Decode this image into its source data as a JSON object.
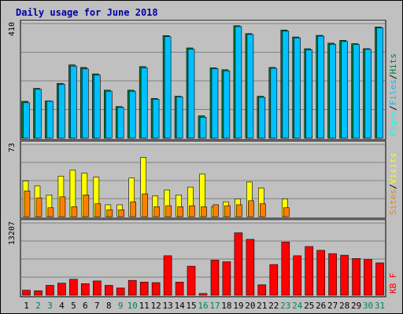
{
  "chart_data": {
    "type": "bar",
    "title": "Daily usage for June 2018",
    "categories": [
      "1",
      "2",
      "3",
      "4",
      "5",
      "6",
      "7",
      "8",
      "9",
      "10",
      "11",
      "12",
      "13",
      "14",
      "15",
      "16",
      "17",
      "18",
      "19",
      "20",
      "21",
      "22",
      "23",
      "24",
      "25",
      "26",
      "27",
      "28",
      "29",
      "30",
      "31"
    ],
    "weekend_days": [
      "2",
      "3",
      "9",
      "10",
      "16",
      "17",
      "23",
      "24",
      "30",
      "31"
    ],
    "panels": [
      {
        "id": "hits",
        "ymax": 410,
        "ymax_label": "410",
        "ylabel": [
          "Pages",
          "Files",
          "Hits"
        ],
        "series": [
          {
            "name": "Hits",
            "color": "#008040",
            "values": [
              132,
              178,
              133,
              196,
              262,
              253,
              230,
              172,
              113,
              172,
              256,
              142,
              367,
              150,
              323,
              80,
              252,
              245,
              402,
              374,
              150,
              253,
              387,
              362,
              320,
              368,
              340,
              350,
              338,
              320,
              398
            ]
          },
          {
            "name": "Files",
            "color": "#00c0ff",
            "values": [
              127,
              175,
              132,
              193,
              258,
              248,
              226,
              168,
              110,
              168,
              252,
              139,
              363,
              148,
              318,
              75,
              249,
              241,
              399,
              371,
              146,
              250,
              383,
              359,
              316,
              365,
              336,
              346,
              335,
              318,
              395
            ]
          },
          {
            "name": "Pages",
            "color": "#00ffff",
            "values": [
              0,
              0,
              0,
              0,
              0,
              0,
              0,
              0,
              0,
              0,
              0,
              0,
              0,
              0,
              0,
              0,
              0,
              0,
              0,
              0,
              0,
              0,
              0,
              0,
              0,
              0,
              0,
              0,
              0,
              0,
              0
            ]
          }
        ]
      },
      {
        "id": "visits",
        "ymax": 73,
        "ymax_label": "73",
        "ylabel": [
          "Sites",
          "Visits"
        ],
        "series": [
          {
            "name": "Visits",
            "color": "#ffff00",
            "values": [
              36,
              31,
              22,
              41,
              47,
              44,
              40,
              12,
              12,
              39,
              60,
              21,
              27,
              22,
              30,
              43,
              10,
              15,
              18,
              35,
              29,
              0,
              18,
              0,
              0,
              0,
              0,
              0,
              0,
              0,
              0
            ]
          },
          {
            "name": "Sites",
            "color": "#ff8000",
            "values": [
              26,
              19,
              9,
              20,
              10,
              22,
              13,
              7,
              7,
              15,
              23,
              10,
              11,
              10,
              11,
              10,
              12,
              11,
              12,
              16,
              13,
              0,
              9,
              0,
              0,
              0,
              0,
              0,
              0,
              0,
              0
            ]
          }
        ]
      },
      {
        "id": "kbytes",
        "ymax": 13207,
        "ymax_label": "13207",
        "ylabel": [
          "KB",
          "F"
        ],
        "series": [
          {
            "name": "KB F",
            "color": "#ff0000",
            "values": [
              900,
              800,
              1800,
              2200,
              2900,
              2100,
              2600,
              1800,
              1300,
              2700,
              2400,
              2300,
              7200,
              2400,
              5300,
              300,
              6400,
              6100,
              11400,
              10200,
              1900,
              5600,
              9700,
              7200,
              8900,
              8200,
              7600,
              7300,
              6700,
              6500,
              5900
            ]
          }
        ]
      }
    ]
  }
}
